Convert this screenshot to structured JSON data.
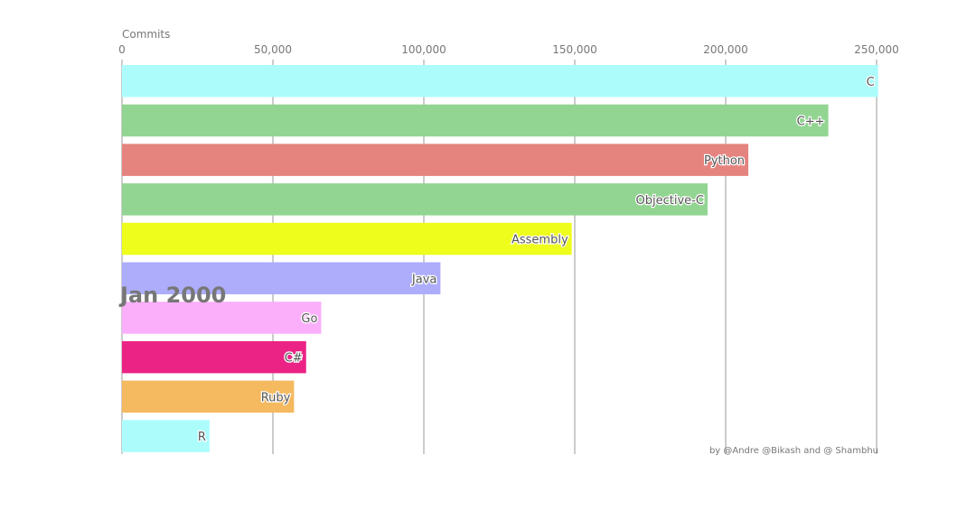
{
  "chart_data": {
    "type": "bar",
    "orientation": "horizontal",
    "xlabel": "Commits",
    "date": "Jan 2000",
    "credit": "by @Andre @Bikash and @ Shambhu",
    "xlim": [
      0,
      250000
    ],
    "xticks": [
      {
        "value": 0,
        "label": "0"
      },
      {
        "value": 50000,
        "label": "50,000"
      },
      {
        "value": 100000,
        "label": "100,000"
      },
      {
        "value": 150000,
        "label": "150,000"
      },
      {
        "value": 200000,
        "label": "200,000"
      },
      {
        "value": 250000,
        "label": "250,000"
      }
    ],
    "grid": true,
    "categories": [
      "C",
      "C++",
      "Python",
      "Objective-C",
      "Assembly",
      "Java",
      "Go",
      "C#",
      "Ruby",
      "R"
    ],
    "values": [
      250500,
      234000,
      207500,
      194000,
      149000,
      105500,
      66000,
      61000,
      57000,
      29000
    ],
    "colors": [
      "#adfcfc",
      "#92d592",
      "#e5837f",
      "#92d592",
      "#eefd1c",
      "#adadfc",
      "#fbaffb",
      "#eb2385",
      "#f5b95f",
      "#adfcfc"
    ]
  }
}
